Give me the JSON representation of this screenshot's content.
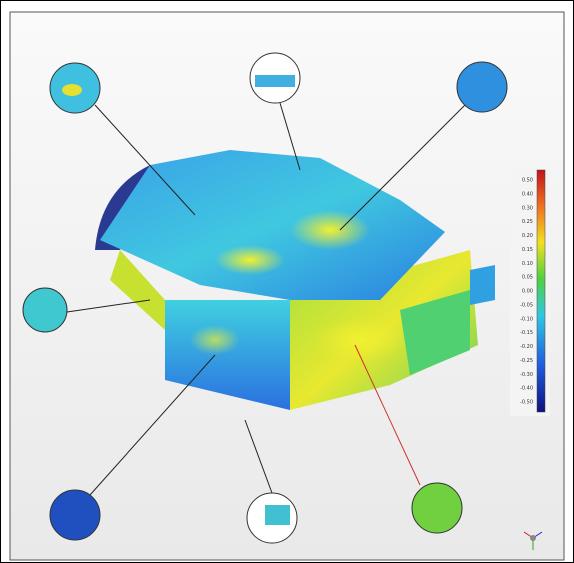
{
  "legend": {
    "labels": [
      "0.50",
      "0.40",
      "0.30",
      "0.25",
      "0.20",
      "0.15",
      "0.10",
      "0.05",
      "0.00",
      "-0.05",
      "-0.10",
      "-0.15",
      "-0.20",
      "-0.25",
      "-0.30",
      "-0.40",
      "-0.50"
    ]
  }
}
